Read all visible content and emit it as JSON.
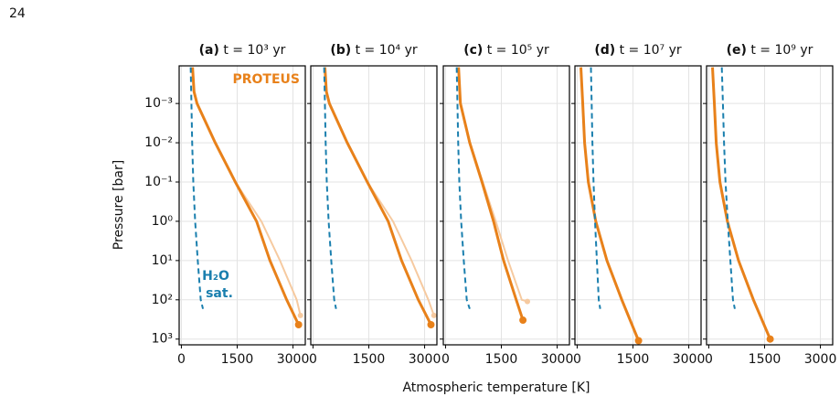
{
  "page_number": "24",
  "chart_data": [
    {
      "type": "line",
      "title": "(a) t = 10³ yr",
      "ylabel": "Pressure [bar]",
      "xlim": [
        -60,
        3330
      ],
      "xticks": [
        0,
        1500,
        3000
      ],
      "ylim": [
        0.00011,
        1400
      ],
      "y_inverted": true,
      "log_y": true,
      "grid": true,
      "yticks": [
        {
          "value": 0.001,
          "label": "10⁻³"
        },
        {
          "value": 0.01,
          "label": "10⁻²"
        },
        {
          "value": 0.1,
          "label": "10⁻¹"
        },
        {
          "value": 1,
          "label": "10⁰"
        },
        {
          "value": 10,
          "label": "10¹"
        },
        {
          "value": 100,
          "label": "10²"
        },
        {
          "value": 1000,
          "label": "10³"
        }
      ],
      "annotations": [
        "PROTEUS",
        "H₂O",
        "sat."
      ],
      "series": [
        {
          "color": "#f6caa0",
          "x": [
            300,
            340,
            420,
            910,
            1450,
            2150,
            2650,
            3100,
            3200
          ],
          "values": [
            0.00012,
            0.0005,
            0.001,
            0.01,
            0.1,
            1,
            10,
            100,
            250
          ],
          "end_marker": true
        },
        {
          "color": "#e8811a",
          "x": [
            300,
            340,
            420,
            910,
            1450,
            2020,
            2380,
            2830,
            3150
          ],
          "values": [
            0.00012,
            0.0005,
            0.001,
            0.01,
            0.1,
            1,
            10,
            100,
            430
          ],
          "end_marker": true,
          "thick": true
        },
        {
          "color": "#1a7fae",
          "x": [
            250,
            270,
            290,
            320,
            370,
            440,
            520,
            580
          ],
          "values": [
            0.00012,
            0.001,
            0.01,
            0.1,
            1,
            10,
            100,
            170
          ],
          "dashed": true
        }
      ]
    },
    {
      "type": "line",
      "title": "(b) t = 10⁴ yr",
      "xlim": [
        -60,
        3330
      ],
      "xticks": [
        0,
        1500,
        3000
      ],
      "ylim": [
        0.00011,
        1400
      ],
      "y_inverted": true,
      "log_y": true,
      "grid": true,
      "series": [
        {
          "color": "#f6caa0",
          "x": [
            320,
            360,
            440,
            920,
            1460,
            2150,
            2650,
            3100,
            3250
          ],
          "values": [
            0.00012,
            0.0005,
            0.001,
            0.01,
            0.1,
            1,
            10,
            100,
            250
          ],
          "end_marker": true
        },
        {
          "color": "#e8811a",
          "x": [
            320,
            360,
            440,
            920,
            1460,
            2020,
            2380,
            2830,
            3170
          ],
          "values": [
            0.00012,
            0.0005,
            0.001,
            0.01,
            0.1,
            1,
            10,
            100,
            430
          ],
          "end_marker": true,
          "thick": true
        },
        {
          "color": "#1a7fae",
          "x": [
            300,
            320,
            340,
            370,
            420,
            490,
            570,
            620
          ],
          "values": [
            0.00012,
            0.001,
            0.01,
            0.1,
            1,
            10,
            100,
            170
          ],
          "dashed": true
        }
      ]
    },
    {
      "type": "line",
      "title": "(c) t = 10⁵ yr",
      "xlabel": "Atmospheric temperature [K]",
      "xlim": [
        -60,
        3330
      ],
      "xticks": [
        0,
        1500,
        3000
      ],
      "ylim": [
        0.00011,
        1400
      ],
      "y_inverted": true,
      "log_y": true,
      "grid": true,
      "series": [
        {
          "color": "#f6caa0",
          "x": [
            350,
            400,
            660,
            1000,
            1350,
            1680,
            2050,
            2200
          ],
          "values": [
            0.00012,
            0.001,
            0.01,
            0.1,
            1,
            10,
            100,
            110
          ],
          "end_marker": true
        },
        {
          "color": "#e8811a",
          "x": [
            350,
            400,
            650,
            980,
            1290,
            1560,
            1900,
            2080
          ],
          "values": [
            0.00012,
            0.001,
            0.01,
            0.1,
            1,
            10,
            100,
            330
          ],
          "end_marker": true,
          "thick": true
        },
        {
          "color": "#1a7fae",
          "x": [
            300,
            320,
            340,
            370,
            420,
            490,
            570,
            650
          ],
          "values": [
            0.00012,
            0.001,
            0.01,
            0.1,
            1,
            10,
            100,
            170
          ],
          "dashed": true
        }
      ]
    },
    {
      "type": "line",
      "title": "(d) t = 10⁷ yr",
      "xlim": [
        -60,
        3330
      ],
      "xticks": [
        0,
        1500,
        3000
      ],
      "ylim": [
        0.00011,
        1400
      ],
      "y_inverted": true,
      "log_y": true,
      "grid": true,
      "series": [
        {
          "color": "#e8811a",
          "x": [
            100,
            150,
            200,
            300,
            500,
            800,
            1200,
            1650
          ],
          "values": [
            0.00012,
            0.001,
            0.01,
            0.1,
            1,
            10,
            100,
            1100
          ],
          "end_marker": true,
          "thick": true
        },
        {
          "color": "#1a7fae",
          "x": [
            370,
            390,
            410,
            440,
            480,
            530,
            580,
            620
          ],
          "values": [
            0.00012,
            0.001,
            0.01,
            0.1,
            1,
            10,
            100,
            170
          ],
          "dashed": true
        }
      ]
    },
    {
      "type": "line",
      "title": "(e) t = 10⁹ yr",
      "xlim": [
        -60,
        3330
      ],
      "xticks": [
        0,
        1500,
        3000
      ],
      "ylim": [
        0.00011,
        1400
      ],
      "y_inverted": true,
      "log_y": true,
      "grid": true,
      "series": [
        {
          "color": "#e8811a",
          "x": [
            100,
            150,
            200,
            300,
            500,
            800,
            1200,
            1650
          ],
          "values": [
            0.00012,
            0.001,
            0.01,
            0.1,
            1,
            10,
            100,
            1000
          ],
          "end_marker": true,
          "thick": true
        },
        {
          "color": "#1a7fae",
          "x": [
            350,
            380,
            410,
            450,
            510,
            580,
            650,
            700
          ],
          "values": [
            0.00012,
            0.001,
            0.01,
            0.1,
            1,
            10,
            100,
            170
          ],
          "dashed": true
        }
      ]
    }
  ]
}
